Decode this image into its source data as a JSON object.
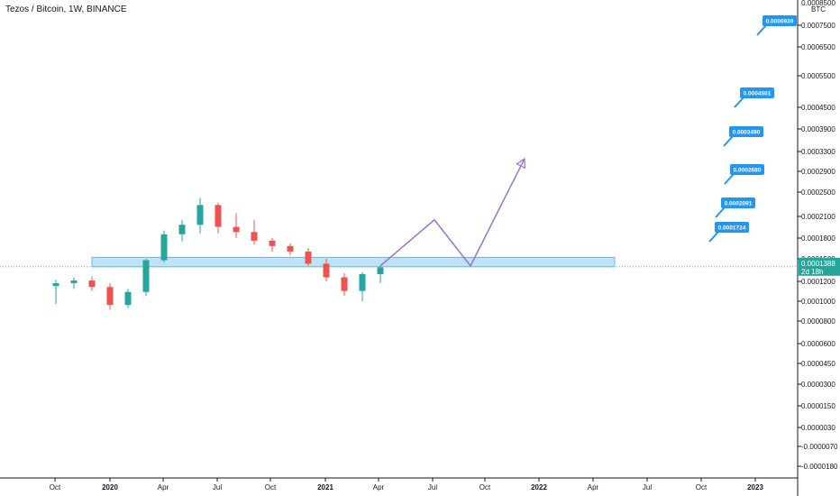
{
  "header": {
    "title": "Tezos / Bitcoin, 1W, BINANCE"
  },
  "colors": {
    "up": "#26a69a",
    "down": "#ef5350",
    "zone_fill": "#bde3f7",
    "zone_stroke": "#5fb8e6",
    "projection": "#9575cd",
    "callout": "#2196f3",
    "price_line": "#26a69a",
    "axis_text": "#131722",
    "axis_line": "#131722"
  },
  "price_axis": {
    "unit": "BTC",
    "top_label": "0.0008500",
    "ticks": [
      "0.0007500",
      "0.0006500",
      "0.0005500",
      "0.0004500",
      "0.0003900",
      "0.0003300",
      "0.0002900",
      "0.0002500",
      "0.0002100",
      "0.0001800",
      "0.0001500",
      "0.0001200",
      "0.0001000",
      "0.0000800",
      "0.0000600",
      "0.0000450",
      "0.0000300",
      "0.0000150",
      "0.0000030",
      "-0.0000070",
      "-0.0000180"
    ]
  },
  "time_axis": {
    "ticks": [
      {
        "label": "Oct",
        "bold": false
      },
      {
        "label": "2020",
        "bold": true
      },
      {
        "label": "Apr",
        "bold": false
      },
      {
        "label": "Jul",
        "bold": false
      },
      {
        "label": "Oct",
        "bold": false
      },
      {
        "label": "2021",
        "bold": true
      },
      {
        "label": "Apr",
        "bold": false
      },
      {
        "label": "Jul",
        "bold": false
      },
      {
        "label": "Oct",
        "bold": false
      },
      {
        "label": "2022",
        "bold": true
      },
      {
        "label": "Apr",
        "bold": false
      },
      {
        "label": "Jul",
        "bold": false
      },
      {
        "label": "Oct",
        "bold": false
      },
      {
        "label": "2023",
        "bold": true
      }
    ]
  },
  "current_price": {
    "value": "0.0001388",
    "countdown": "2d 18h"
  },
  "support_zone": {
    "low": 0.0001388,
    "high": 0.000152,
    "start": "Dec 2019",
    "end": "May 2022"
  },
  "projection_path": [
    {
      "date": "Apr 2021",
      "price": 0.00014
    },
    {
      "date": "Jul 2021",
      "price": 0.000205
    },
    {
      "date": "Sep 2021",
      "price": 0.00014
    },
    {
      "date": "Dec 2021",
      "price": 0.000315
    }
  ],
  "targets": [
    "0.0006939",
    "0.0004501",
    "0.0003490",
    "0.0002680",
    "0.0002091",
    "0.0001724"
  ],
  "chart_data": {
    "type": "candlestick",
    "title": "Tezos / Bitcoin, 1W, BINANCE",
    "ylabel": "BTC",
    "log_scale": true,
    "ylim": [
      -1.8e-05,
      0.00085
    ],
    "x": [
      "Oct 2019",
      "Nov 2019",
      "Dec 2019",
      "Jan 2020",
      "Feb 2020",
      "Mar 2020",
      "Apr 2020",
      "May 2020",
      "Jun 2020",
      "Jul 2020",
      "Aug 2020",
      "Sep 2020",
      "Oct 2020",
      "Nov 2020",
      "Dec 2020",
      "Jan 2021",
      "Feb 2021",
      "Mar 2021",
      "Apr 2021"
    ],
    "candles": [
      {
        "o": 0.000115,
        "h": 0.000122,
        "l": 9.7e-05,
        "c": 0.000118
      },
      {
        "o": 0.000118,
        "h": 0.000125,
        "l": 0.000112,
        "c": 0.000121
      },
      {
        "o": 0.000121,
        "h": 0.000126,
        "l": 0.00011,
        "c": 0.000114
      },
      {
        "o": 0.000114,
        "h": 0.000118,
        "l": 9.1e-05,
        "c": 9.6e-05
      },
      {
        "o": 9.6e-05,
        "h": 0.000112,
        "l": 9.3e-05,
        "c": 0.000109
      },
      {
        "o": 0.000109,
        "h": 0.00015,
        "l": 0.000105,
        "c": 0.000148
      },
      {
        "o": 0.000148,
        "h": 0.00019,
        "l": 0.000145,
        "c": 0.000185
      },
      {
        "o": 0.000185,
        "h": 0.000205,
        "l": 0.000175,
        "c": 0.000198
      },
      {
        "o": 0.000198,
        "h": 0.00024,
        "l": 0.000186,
        "c": 0.000228
      },
      {
        "o": 0.000228,
        "h": 0.000232,
        "l": 0.000186,
        "c": 0.000195
      },
      {
        "o": 0.000195,
        "h": 0.000215,
        "l": 0.00018,
        "c": 0.000188
      },
      {
        "o": 0.000188,
        "h": 0.000205,
        "l": 0.00017,
        "c": 0.000176
      },
      {
        "o": 0.000176,
        "h": 0.00018,
        "l": 0.00016,
        "c": 0.000168
      },
      {
        "o": 0.000168,
        "h": 0.000172,
        "l": 0.000155,
        "c": 0.00016
      },
      {
        "o": 0.00016,
        "h": 0.000165,
        "l": 0.00014,
        "c": 0.000143
      },
      {
        "o": 0.000143,
        "h": 0.00015,
        "l": 0.00012,
        "c": 0.000125
      },
      {
        "o": 0.000125,
        "h": 0.00013,
        "l": 0.000105,
        "c": 0.00011
      },
      {
        "o": 0.00011,
        "h": 0.000132,
        "l": 0.0001,
        "c": 0.000129
      },
      {
        "o": 0.000129,
        "h": 0.000141,
        "l": 0.000118,
        "c": 0.000138
      }
    ]
  }
}
